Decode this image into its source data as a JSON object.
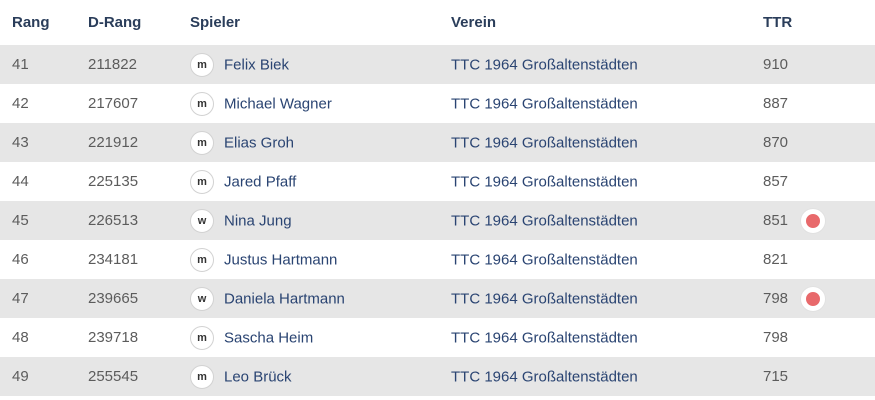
{
  "table": {
    "headers": {
      "rang": "Rang",
      "d_rang": "D-Rang",
      "spieler": "Spieler",
      "verein": "Verein",
      "ttr": "TTR"
    },
    "rows": [
      {
        "rang": "41",
        "d_rang": "211822",
        "gender": "m",
        "spieler": "Felix Biek",
        "verein": "TTC 1964 Großaltenstädten",
        "ttr": "910",
        "dot": false
      },
      {
        "rang": "42",
        "d_rang": "217607",
        "gender": "m",
        "spieler": "Michael Wagner",
        "verein": "TTC 1964 Großaltenstädten",
        "ttr": "887",
        "dot": false
      },
      {
        "rang": "43",
        "d_rang": "221912",
        "gender": "m",
        "spieler": "Elias Groh",
        "verein": "TTC 1964 Großaltenstädten",
        "ttr": "870",
        "dot": false
      },
      {
        "rang": "44",
        "d_rang": "225135",
        "gender": "m",
        "spieler": "Jared Pfaff",
        "verein": "TTC 1964 Großaltenstädten",
        "ttr": "857",
        "dot": false
      },
      {
        "rang": "45",
        "d_rang": "226513",
        "gender": "w",
        "spieler": "Nina Jung",
        "verein": "TTC 1964 Großaltenstädten",
        "ttr": "851",
        "dot": true
      },
      {
        "rang": "46",
        "d_rang": "234181",
        "gender": "m",
        "spieler": "Justus Hartmann",
        "verein": "TTC 1964 Großaltenstädten",
        "ttr": "821",
        "dot": false
      },
      {
        "rang": "47",
        "d_rang": "239665",
        "gender": "w",
        "spieler": "Daniela Hartmann",
        "verein": "TTC 1964 Großaltenstädten",
        "ttr": "798",
        "dot": true
      },
      {
        "rang": "48",
        "d_rang": "239718",
        "gender": "m",
        "spieler": "Sascha Heim",
        "verein": "TTC 1964 Großaltenstädten",
        "ttr": "798",
        "dot": false
      },
      {
        "rang": "49",
        "d_rang": "255545",
        "gender": "m",
        "spieler": "Leo Brück",
        "verein": "TTC 1964 Großaltenstädten",
        "ttr": "715",
        "dot": false
      }
    ]
  },
  "colors": {
    "header_text": "#2a3d5a",
    "link_text": "#2a4472",
    "muted_text": "#5c5c5c",
    "row_stripe": "#e6e6e6",
    "status_dot": "#e8696b"
  }
}
